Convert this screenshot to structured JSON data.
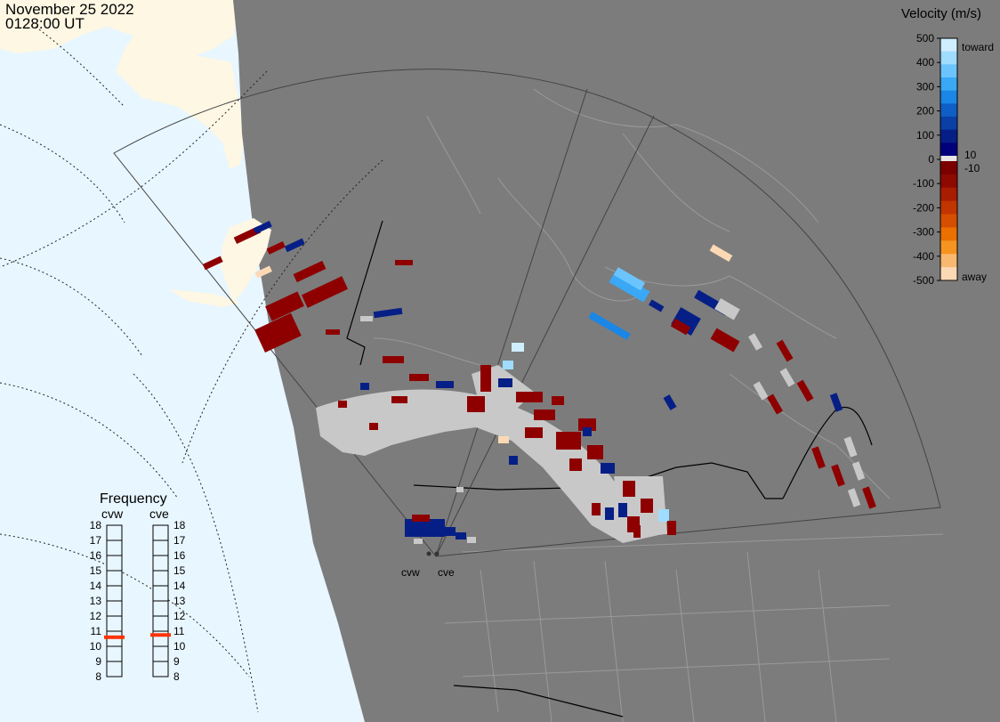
{
  "header": {
    "date": "November 25 2022",
    "time": "0128:00 UT"
  },
  "velocity_scale": {
    "title": "Velocity (m/s)",
    "ticks": [
      "500",
      "400",
      "300",
      "200",
      "100",
      "0",
      "-100",
      "-200",
      "-300",
      "-400",
      "-500"
    ],
    "toward_label": "toward",
    "away_label": "away",
    "thresholds": [
      "10",
      "-10"
    ],
    "colors": {
      "toward": [
        "#cfeeff",
        "#9fdcff",
        "#6cc4ff",
        "#3aa8f5",
        "#1a86e6",
        "#0f5ec6",
        "#0a3fa6",
        "#061f86",
        "#00007a"
      ],
      "away": [
        "#7a0000",
        "#8e0a00",
        "#a81c00",
        "#c23400",
        "#d64f00",
        "#ea7000",
        "#f59420",
        "#f8b870",
        "#fcd9b4"
      ],
      "zero": "#e6e6e6"
    }
  },
  "frequency": {
    "title": "Frequency",
    "radars": [
      "cvw",
      "cve"
    ],
    "ticks": [
      "18",
      "17",
      "16",
      "15",
      "14",
      "13",
      "12",
      "11",
      "10",
      "9",
      "8"
    ],
    "range_mhz": [
      8,
      18
    ],
    "current_mhz": {
      "cvw": 10.6,
      "cve": 10.75
    },
    "marker_color": "#ff3300"
  },
  "map": {
    "site_labels": [
      "cvw",
      "cve"
    ],
    "colors": {
      "land": "#7c7c7c",
      "ocean": "#e8f6ff",
      "night_land": "#fdf7e3",
      "borders": "#9a9a9a",
      "country_border": "#000000",
      "ground_scatter": "#c8c8c8"
    }
  }
}
